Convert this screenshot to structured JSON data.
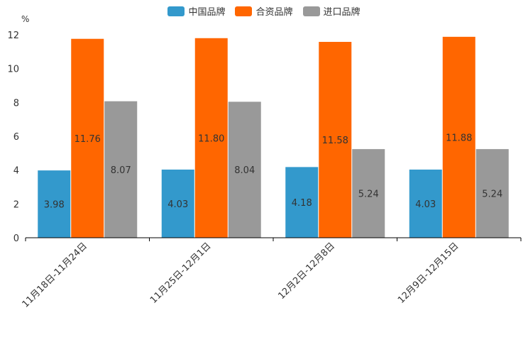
{
  "chart_data": {
    "type": "bar",
    "unit": "%",
    "categories": [
      "11月18日-11月24日",
      "11月25日-12月1日",
      "12月2日-12月8日",
      "12月9日-12月15日"
    ],
    "series": [
      {
        "name": "中国品牌",
        "color": "#3399cc",
        "values": [
          3.98,
          4.03,
          4.18,
          4.03
        ],
        "labels": [
          "3.98",
          "4.03",
          "4.18",
          "4.03"
        ]
      },
      {
        "name": "合资品牌",
        "color": "#ff6600",
        "values": [
          11.76,
          11.8,
          11.58,
          11.88
        ],
        "labels": [
          "11.76",
          "11.80",
          "11.58",
          "11.88"
        ]
      },
      {
        "name": "进口品牌",
        "color": "#999999",
        "values": [
          8.07,
          8.04,
          5.24,
          5.24
        ],
        "labels": [
          "8.07",
          "8.04",
          "5.24",
          "5.24"
        ]
      }
    ],
    "ylim": [
      0,
      12
    ],
    "yticks": [
      "0",
      "2",
      "4",
      "6",
      "8",
      "10",
      "12"
    ],
    "legend_position": "top-center"
  }
}
